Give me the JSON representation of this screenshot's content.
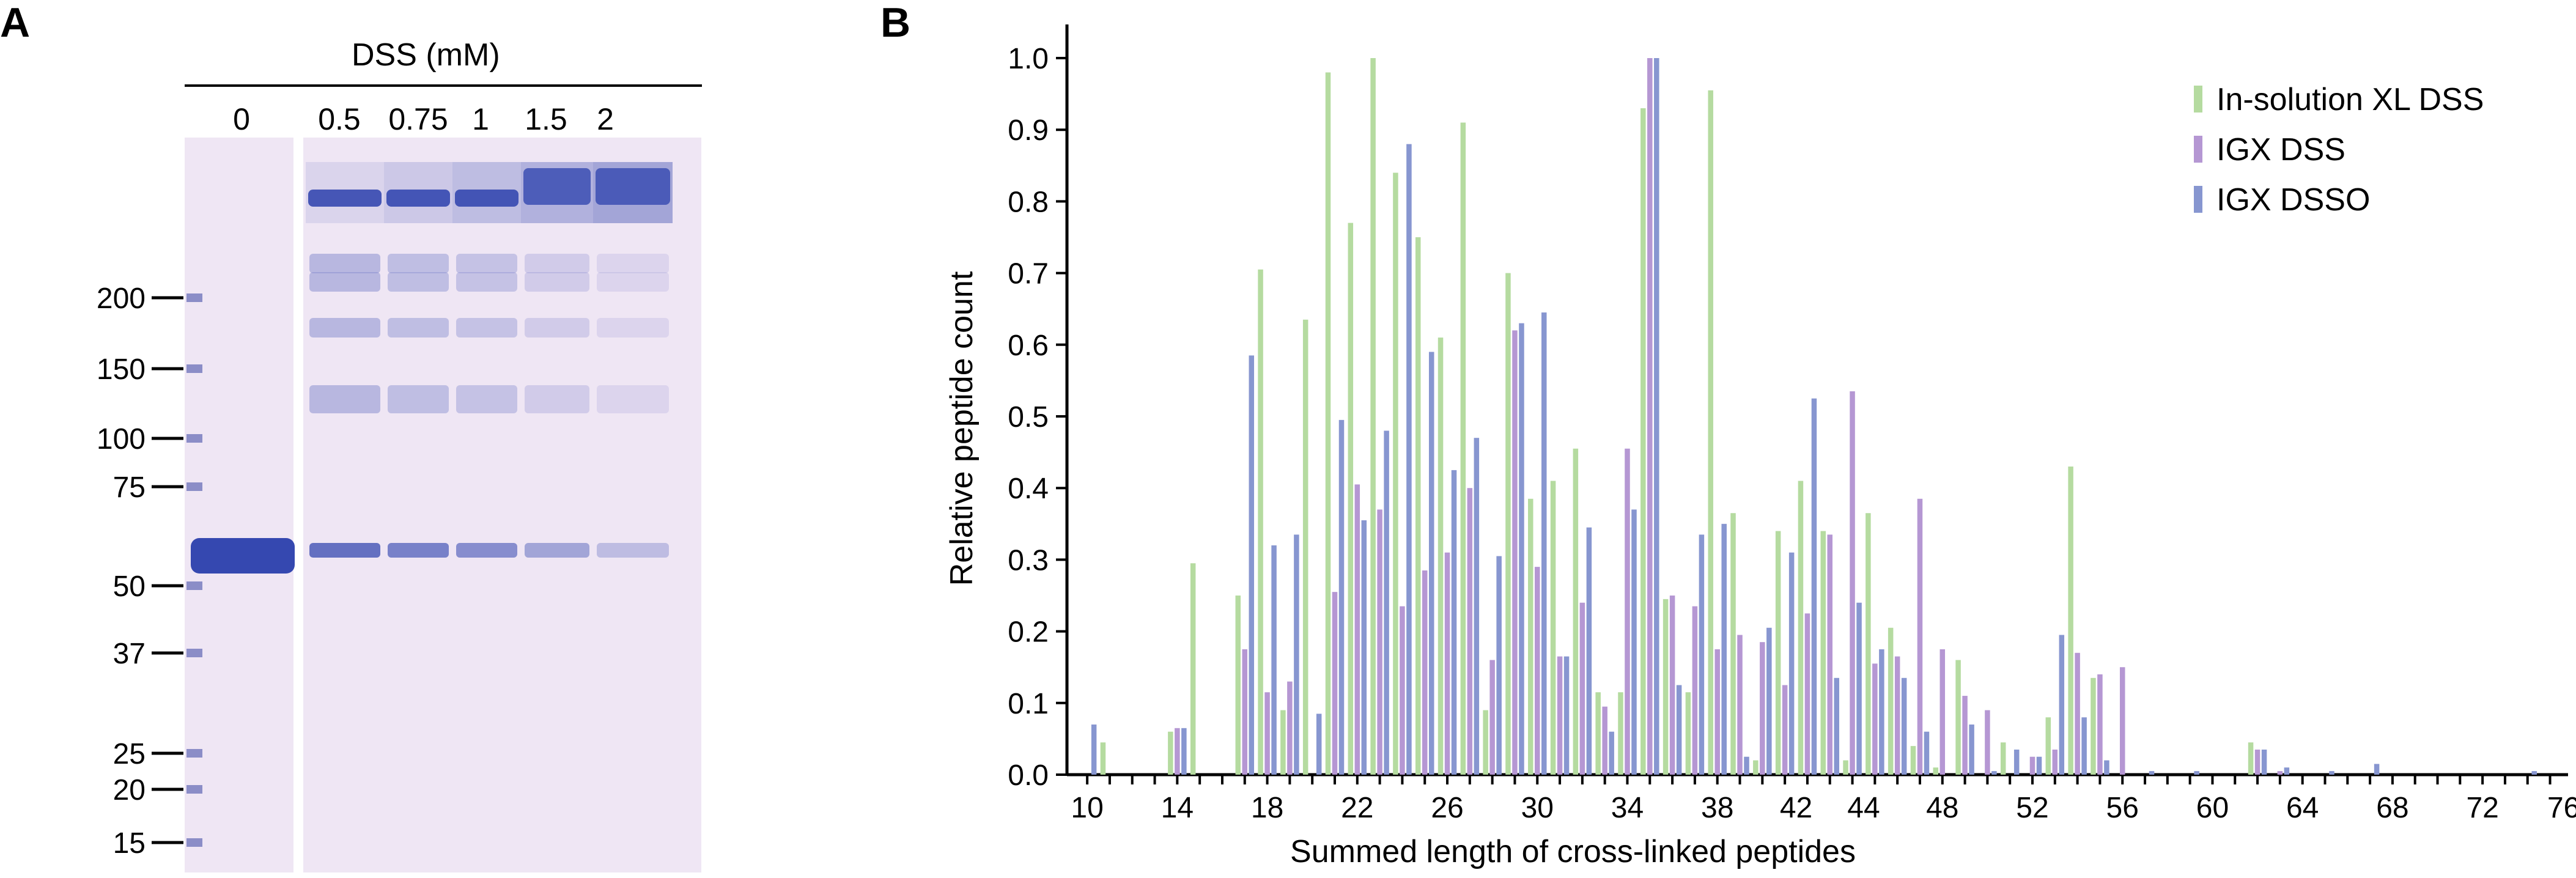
{
  "panel_a": {
    "letter": "A",
    "title": "DSS (mM)",
    "lanes": [
      "0",
      "0.5",
      "0.75",
      "1",
      "1.5",
      "2"
    ],
    "markers": [
      "200",
      "150",
      "100",
      "75",
      "50",
      "37",
      "25",
      "20",
      "15"
    ],
    "colors": {
      "gel_bg": "#efe6f4",
      "band": "#3548b0",
      "faint_band": "#b9b7df"
    }
  },
  "panel_b": {
    "letter": "B",
    "chart_data": {
      "type": "bar",
      "xlabel": "Summed length of cross-linked peptides",
      "ylabel": "Relative peptide count",
      "xlim": [
        9,
        76
      ],
      "ylim": [
        0,
        1.0
      ],
      "x_ticks": [
        "10",
        "14",
        "18",
        "22",
        "26",
        "30",
        "34",
        "38",
        "42",
        "44",
        "48",
        "52",
        "56",
        "60",
        "64",
        "68",
        "72",
        "76"
      ],
      "y_ticks": [
        "0.0",
        "0.1",
        "0.2",
        "0.3",
        "0.4",
        "0.5",
        "0.6",
        "0.7",
        "0.8",
        "0.9",
        "1.0"
      ],
      "legend_position": "top-right",
      "x": [
        10,
        11,
        12,
        13,
        14,
        15,
        16,
        17,
        18,
        19,
        20,
        21,
        22,
        23,
        24,
        25,
        26,
        27,
        28,
        29,
        30,
        31,
        32,
        33,
        34,
        35,
        36,
        37,
        38,
        39,
        40,
        41,
        42,
        43,
        44,
        45,
        46,
        47,
        48,
        49,
        50,
        51,
        52,
        53,
        54,
        55,
        56,
        57,
        58,
        59,
        60,
        61,
        62,
        63,
        64,
        65,
        66,
        67,
        68,
        69,
        70,
        71,
        72,
        73,
        74,
        75
      ],
      "series": [
        {
          "name": "In-solution XL DSS",
          "color": "#b5dba0",
          "values": [
            0,
            0.045,
            0,
            0,
            0.06,
            0.295,
            0,
            0.25,
            0.705,
            0.09,
            0.635,
            0.98,
            0.77,
            1.0,
            0.84,
            0.75,
            0.61,
            0.91,
            0.09,
            0.7,
            0.385,
            0.41,
            0.455,
            0.115,
            0.115,
            0.93,
            0.245,
            0.115,
            0.955,
            0.365,
            0.02,
            0.34,
            0.41,
            0.34,
            0.02,
            0.365,
            0.205,
            0.04,
            0.01,
            0.16,
            0,
            0.045,
            0,
            0.08,
            0.43,
            0.135,
            0,
            0,
            0,
            0,
            0,
            0,
            0.045,
            0,
            0,
            0,
            0,
            0,
            0,
            0,
            0,
            0,
            0,
            0,
            0,
            0
          ]
        },
        {
          "name": "IGX DSS",
          "color": "#b597d3",
          "values": [
            0,
            0,
            0,
            0,
            0.065,
            0,
            0,
            0.175,
            0.115,
            0.13,
            0,
            0.255,
            0.405,
            0.37,
            0.235,
            0.285,
            0.31,
            0.4,
            0.16,
            0.62,
            0.29,
            0.165,
            0.24,
            0.095,
            0.455,
            1.0,
            0.25,
            0.235,
            0.175,
            0.195,
            0.185,
            0.125,
            0.225,
            0.335,
            0.535,
            0.155,
            0.165,
            0.385,
            0.175,
            0.11,
            0.09,
            0,
            0.025,
            0.035,
            0.17,
            0.14,
            0.15,
            0,
            0,
            0,
            0,
            0,
            0.035,
            0.005,
            0,
            0,
            0,
            0,
            0,
            0,
            0,
            0,
            0,
            0,
            0,
            0
          ]
        },
        {
          "name": "IGX DSSO",
          "color": "#8796d0",
          "values": [
            0.07,
            0,
            0,
            0,
            0.065,
            0,
            0,
            0.585,
            0.32,
            0.335,
            0.085,
            0.495,
            0.355,
            0.48,
            0.88,
            0.59,
            0.425,
            0.47,
            0.305,
            0.63,
            0.645,
            0.165,
            0.345,
            0.06,
            0.37,
            1.0,
            0.125,
            0.335,
            0.35,
            0.025,
            0.205,
            0.31,
            0.525,
            0.135,
            0.24,
            0.175,
            0.135,
            0.06,
            0,
            0.07,
            0.005,
            0.035,
            0.025,
            0.195,
            0.08,
            0.02,
            0,
            0.005,
            0,
            0.005,
            0,
            0,
            0.035,
            0.01,
            0,
            0.005,
            0,
            0.015,
            0,
            0,
            0,
            0,
            0,
            0,
            0.005,
            0
          ]
        }
      ]
    }
  }
}
